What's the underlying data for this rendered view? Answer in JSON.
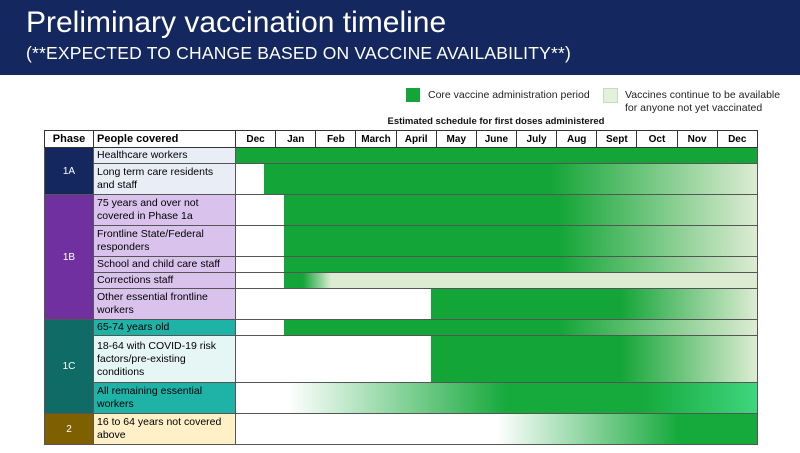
{
  "header": {
    "title": "Preliminary vaccination timeline",
    "subtitle": "(**EXPECTED TO CHANGE BASED ON VACCINE AVAILABILITY**)"
  },
  "legend": {
    "core": "Core vaccine administration period",
    "light_line1": "Vaccines continue to be available",
    "light_line2": "for anyone not yet vaccinated",
    "colors": {
      "core": "#13a537",
      "light": "#e3f0da"
    }
  },
  "schedule_title": "Estimated schedule for first doses administered",
  "columns": {
    "phase": "Phase",
    "people": "People covered",
    "months": [
      "Dec",
      "Jan",
      "Feb",
      "March",
      "April",
      "May",
      "June",
      "July",
      "Aug",
      "Sept",
      "Oct",
      "Nov",
      "Dec"
    ]
  },
  "phases": [
    {
      "label": "1A",
      "color": "#14275f",
      "rows": [
        {
          "people": "Healthcare workers",
          "bg": "#e9edf6"
        },
        {
          "people": "Long term care residents and staff",
          "bg": "#e9edf6"
        }
      ]
    },
    {
      "label": "1B",
      "color": "#7030a0",
      "rows": [
        {
          "people": "75 years and over not covered in Phase 1a",
          "bg": "#d9c3ec"
        },
        {
          "people": "Frontline State/Federal responders",
          "bg": "#d9c3ec"
        },
        {
          "people": "School and child care staff",
          "bg": "#d9c3ec"
        },
        {
          "people": "Corrections staff",
          "bg": "#d9c3ec"
        },
        {
          "people": "Other essential frontline workers",
          "bg": "#d9c3ec"
        }
      ]
    },
    {
      "label": "1C",
      "color": "#0f6b66",
      "rows": [
        {
          "people": "65-74 years old",
          "bg": "#1fb3a8"
        },
        {
          "people": "18-64 with COVID-19 risk factors/pre-existing conditions",
          "bg": "#e6f6f4"
        },
        {
          "people": "All remaining essential workers",
          "bg": "#1fb3a8"
        }
      ]
    },
    {
      "label": "2",
      "color": "#7f6000",
      "rows": [
        {
          "people": "16 to 64 years not covered above",
          "bg": "#fff0c8"
        }
      ]
    }
  ]
}
